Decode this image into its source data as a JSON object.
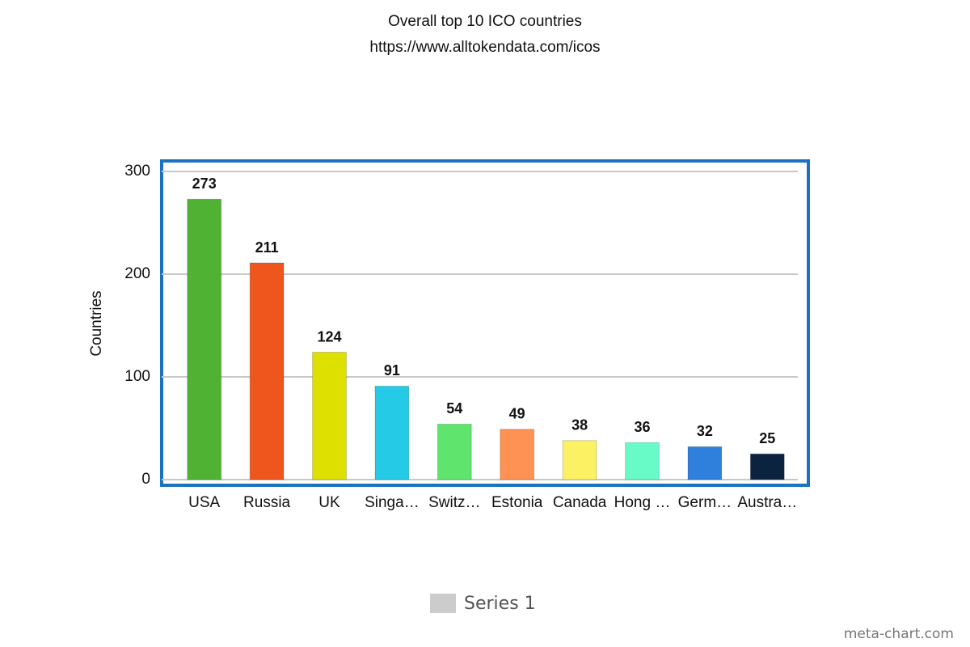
{
  "chart_data": {
    "type": "bar",
    "title": "Overall top 10 ICO countries",
    "subtitle": "https://www.alltokendata.com/icos",
    "y_label": "Countries",
    "categories": [
      "USA",
      "Russia",
      "UK",
      "Singa…",
      "Switz…",
      "Estonia",
      "Canada",
      "Hong …",
      "Germ…",
      "Austra…"
    ],
    "series": [
      {
        "name": "Series 1",
        "color": "#cccccc",
        "values": [
          273,
          211,
          124,
          91,
          54,
          49,
          38,
          36,
          32,
          25
        ],
        "colors": [
          "#4fb233",
          "#ee561d",
          "#dde000",
          "#25cbe6",
          "#5fe46d",
          "#fe9154",
          "#fcf162",
          "#68fbc8",
          "#2f7fdc",
          "#0c2340"
        ]
      }
    ],
    "ylim": [
      0,
      300
    ],
    "yticks": [
      0,
      100,
      200,
      300
    ],
    "grid": true,
    "legend": "bottom",
    "watermark": "meta-chart.com"
  }
}
